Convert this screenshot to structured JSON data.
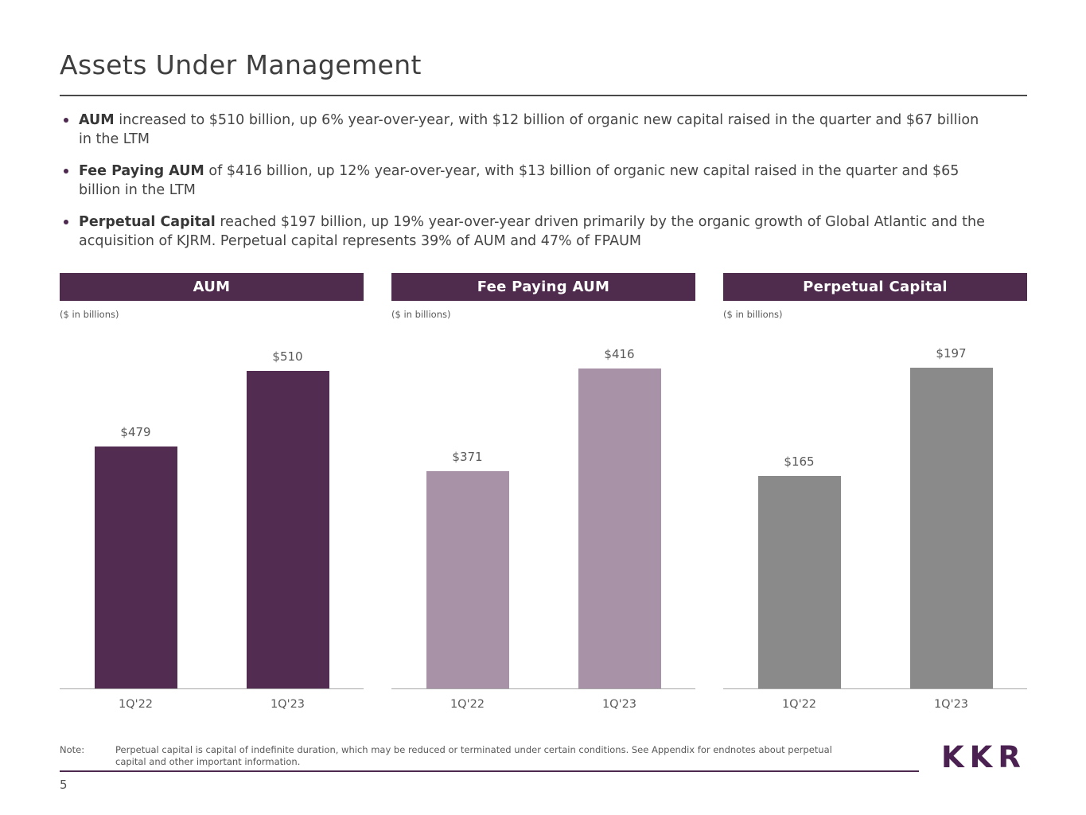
{
  "title": "Assets Under Management",
  "bullets": [
    {
      "lead": "AUM",
      "text": "increased to $510 billion, up 6% year-over-year, with $12 billion of organic new capital raised in the quarter and $67 billion in the LTM"
    },
    {
      "lead": "Fee Paying AUM",
      "text": "of $416 billion, up 12% year-over-year, with $13 billion of organic new capital raised in the quarter and $65 billion in the LTM"
    },
    {
      "lead": "Perpetual Capital",
      "text": "reached $197 billion, up 19% year-over-year driven primarily by the organic growth of Global Atlantic and the acquisition of KJRM. Perpetual capital represents 39% of AUM and 47% of FPAUM"
    }
  ],
  "chart_data": [
    {
      "type": "bar",
      "title": "AUM",
      "units_label": "($ in billions)",
      "categories": [
        "1Q'22",
        "1Q'23"
      ],
      "values": [
        479,
        510
      ],
      "value_labels": [
        "$479",
        "$510"
      ],
      "bar_color": "#532c52",
      "ylim": [
        380,
        521
      ],
      "grid": false,
      "legend": false
    },
    {
      "type": "bar",
      "title": "Fee Paying AUM",
      "units_label": "($ in billions)",
      "categories": [
        "1Q'22",
        "1Q'23"
      ],
      "values": [
        371,
        416
      ],
      "value_labels": [
        "$371",
        "$416"
      ],
      "bar_color": "#a892a8",
      "ylim": [
        275,
        427
      ],
      "grid": false,
      "legend": false
    },
    {
      "type": "bar",
      "title": "Perpetual Capital",
      "units_label": "($ in billions)",
      "categories": [
        "1Q'22",
        "1Q'23"
      ],
      "values": [
        165,
        197
      ],
      "value_labels": [
        "$165",
        "$197"
      ],
      "bar_color": "#8a8a8a",
      "ylim": [
        102,
        204
      ],
      "grid": false,
      "legend": false
    }
  ],
  "note": {
    "label": "Note:",
    "text": "Perpetual capital is capital of indefinite duration, which may be reduced or terminated under certain conditions. See Appendix for endnotes about perpetual capital and other important information."
  },
  "logo": "KKR",
  "page_number": "5",
  "colors": {
    "header_bg": "#4f2b4e",
    "accent_purple": "#4d2950",
    "title_text": "#3f3f3f",
    "body_text": "#454545",
    "muted_text": "#595959",
    "baseline": "#a8a8a8"
  }
}
